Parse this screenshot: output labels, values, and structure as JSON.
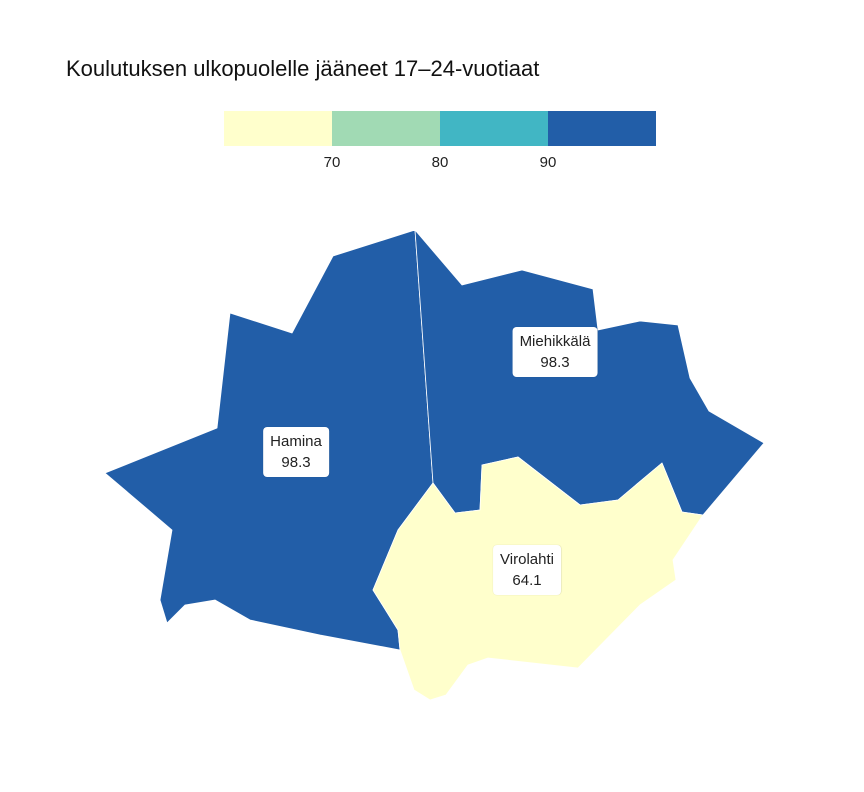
{
  "title": "Koulutuksen ulkopuolelle jääneet 17–24-vuotiaat",
  "legend": {
    "bins": [
      {
        "color": "#ffffcc",
        "min": null,
        "max": 70
      },
      {
        "color": "#a1dab4",
        "min": 70,
        "max": 80
      },
      {
        "color": "#41b6c4",
        "min": 80,
        "max": 90
      },
      {
        "color": "#225ea8",
        "min": 90,
        "max": null
      }
    ],
    "ticks": [
      "70",
      "80",
      "90"
    ]
  },
  "regions": [
    {
      "name": "Hamina",
      "value": "98.3",
      "color": "#225ea8"
    },
    {
      "name": "Miehikkälä",
      "value": "98.3",
      "color": "#225ea8"
    },
    {
      "name": "Virolahti",
      "value": "64.1",
      "color": "#ffffcc"
    }
  ],
  "chart_data": {
    "type": "choropleth",
    "title": "Koulutuksen ulkopuolelle jääneet 17–24-vuotiaat",
    "categories": [
      "Hamina",
      "Miehikkälä",
      "Virolahti"
    ],
    "values": [
      98.3,
      98.3,
      64.1
    ],
    "legend_breaks": [
      70,
      80,
      90
    ],
    "legend_placement": "top"
  }
}
